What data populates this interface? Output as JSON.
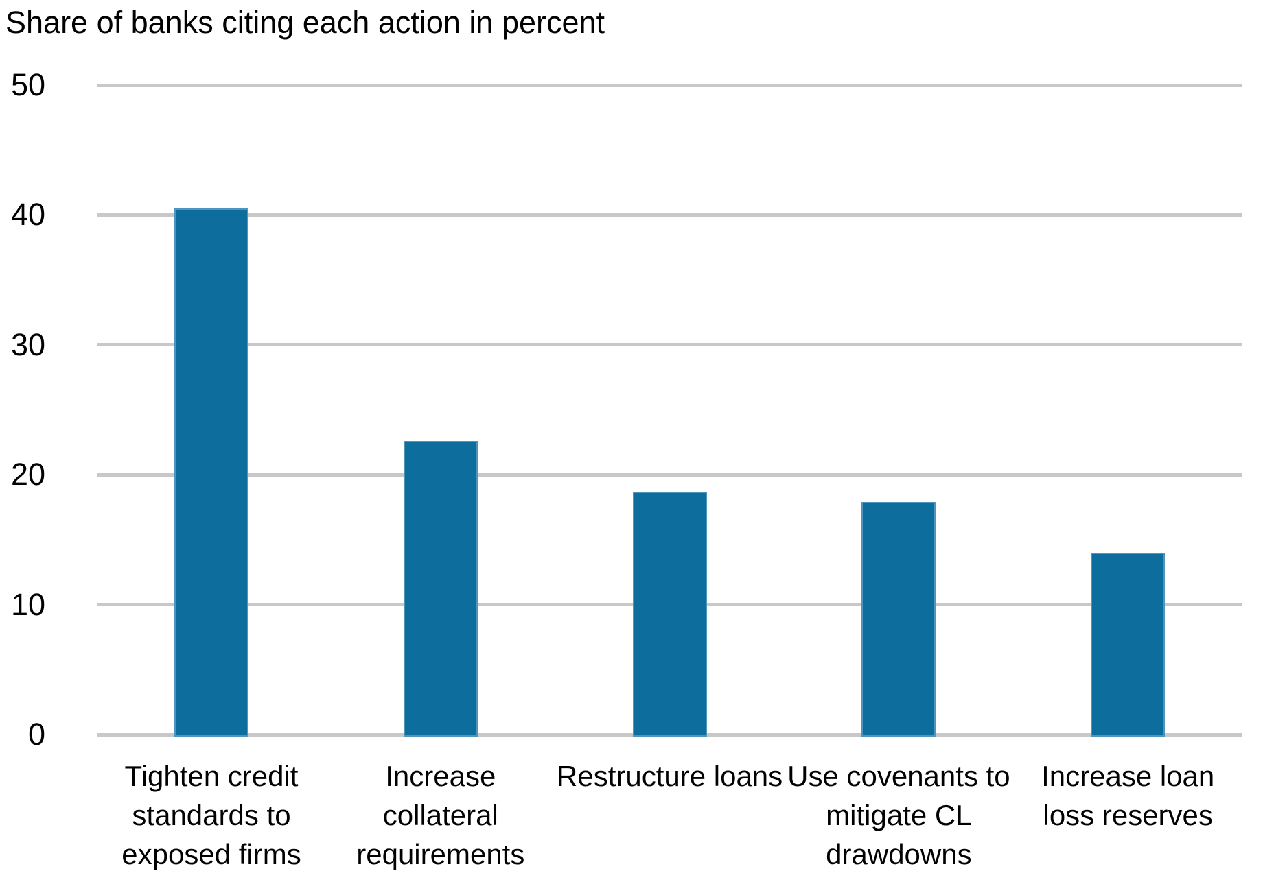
{
  "chart_data": {
    "type": "bar",
    "title": "Share of banks citing each action in percent",
    "categories": [
      "Tighten credit standards to exposed firms",
      "Increase collateral requirements",
      "Restructure loans",
      "Use covenants to mitigate CL drawdowns",
      "Increase loan loss reserves"
    ],
    "values": [
      40.5,
      22.6,
      18.7,
      17.9,
      14.0
    ],
    "xlabel": "",
    "ylabel": "",
    "ylim": [
      0,
      50
    ],
    "yticks": [
      0,
      10,
      20,
      30,
      40,
      50
    ],
    "grid": "horizontal",
    "legend": "none",
    "bar_color": "#0d6e9e",
    "bar_edge_color": "#4e94bd",
    "gridline_color": "#c8c8c8",
    "text_color": "#000000",
    "background_color": "#ffffff"
  }
}
